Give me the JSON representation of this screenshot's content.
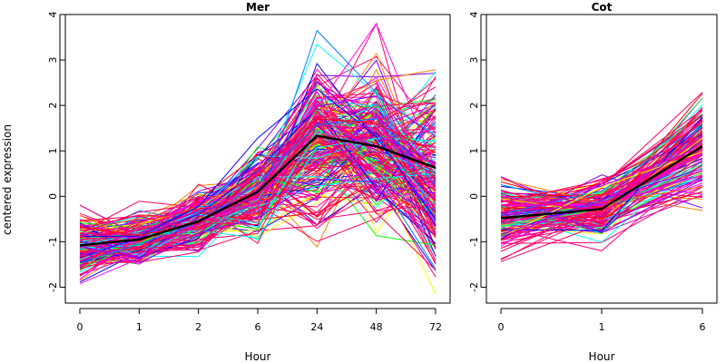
{
  "ylabel": "centered expression",
  "chart_data": [
    {
      "type": "line",
      "title": "Mer",
      "xlabel": "Hour",
      "categories": [
        "0",
        "1",
        "2",
        "6",
        "24",
        "48",
        "72"
      ],
      "ylim": [
        -2.35,
        4.0
      ],
      "yticks": [
        "-2",
        "-1",
        "0",
        "1",
        "2",
        "3",
        "4"
      ],
      "grid": false,
      "legend": "none",
      "mean_series": {
        "color": "#000000",
        "values": [
          -1.08,
          -0.95,
          -0.55,
          0.1,
          1.33,
          1.1,
          0.63
        ]
      },
      "profile_count": 220,
      "profile_spread": [
        0.3,
        0.25,
        0.3,
        0.45,
        0.75,
        0.75,
        0.95
      ],
      "seed": 11
    },
    {
      "type": "line",
      "title": "Cot",
      "xlabel": "Hour",
      "categories": [
        "0",
        "1",
        "6"
      ],
      "ylim": [
        -2.35,
        4.0
      ],
      "yticks": [
        "-2",
        "-1",
        "0",
        "1",
        "2",
        "3",
        "4"
      ],
      "grid": false,
      "legend": "none",
      "mean_series": {
        "color": "#000000",
        "values": [
          -0.48,
          -0.28,
          1.1
        ]
      },
      "profile_count": 140,
      "profile_spread": [
        0.35,
        0.3,
        0.55
      ],
      "seed": 29
    }
  ],
  "colors": {
    "palette": [
      "#ff0000",
      "#ff00ff",
      "#0000ff",
      "#00ffff",
      "#00ff00",
      "#ffff00",
      "#ff0080",
      "#8000ff",
      "#0080ff",
      "#00ff80",
      "#ff8000",
      "#cc00cc"
    ],
    "dominant": "#ff0066"
  }
}
